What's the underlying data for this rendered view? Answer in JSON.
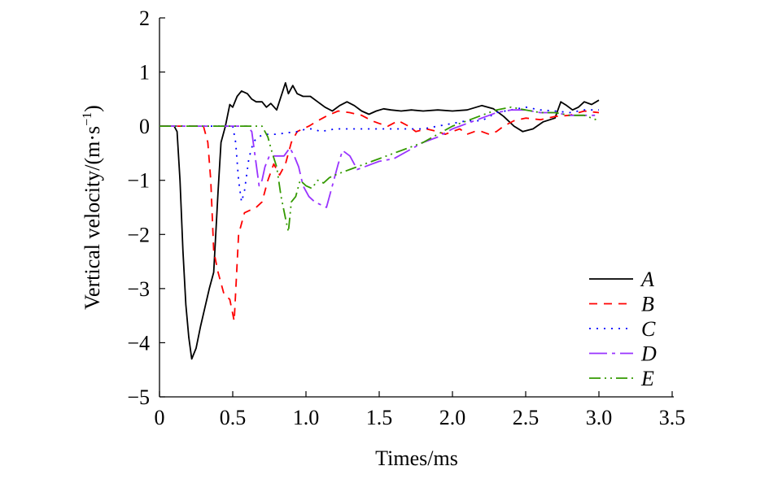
{
  "chart_data": {
    "type": "line",
    "title": "",
    "xlabel": "Times/ms",
    "ylabel_main": "Vertical velocity/(m·s",
    "ylabel_exp": "−1",
    "ylabel_close": ")",
    "xlim": [
      0,
      3.5
    ],
    "ylim": [
      -5,
      2
    ],
    "x_ticks": [
      0,
      0.5,
      1.0,
      1.5,
      2.0,
      2.5,
      3.0,
      3.5
    ],
    "x_tick_labels": [
      "0",
      "0.5",
      "1.0",
      "1.5",
      "2.0",
      "2.5",
      "3.0",
      "3.5"
    ],
    "y_ticks": [
      2,
      1,
      0,
      -1,
      -2,
      -3,
      -4,
      -5
    ],
    "y_tick_labels": [
      "2",
      "1",
      "0",
      "−1",
      "−2",
      "−3",
      "−4",
      "−5"
    ],
    "grid": false,
    "legend_position": "bottom-right",
    "series": [
      {
        "name": "A",
        "color": "#000000",
        "dash": "solid",
        "points": [
          [
            0,
            0
          ],
          [
            0.1,
            0
          ],
          [
            0.12,
            -0.1
          ],
          [
            0.14,
            -1.0
          ],
          [
            0.16,
            -2.3
          ],
          [
            0.18,
            -3.3
          ],
          [
            0.2,
            -3.9
          ],
          [
            0.22,
            -4.3
          ],
          [
            0.25,
            -4.1
          ],
          [
            0.28,
            -3.7
          ],
          [
            0.31,
            -3.35
          ],
          [
            0.34,
            -3.0
          ],
          [
            0.37,
            -2.7
          ],
          [
            0.4,
            -1.2
          ],
          [
            0.42,
            -0.3
          ],
          [
            0.45,
            0.0
          ],
          [
            0.48,
            0.4
          ],
          [
            0.5,
            0.35
          ],
          [
            0.53,
            0.55
          ],
          [
            0.56,
            0.65
          ],
          [
            0.6,
            0.6
          ],
          [
            0.63,
            0.5
          ],
          [
            0.66,
            0.45
          ],
          [
            0.7,
            0.45
          ],
          [
            0.73,
            0.35
          ],
          [
            0.76,
            0.42
          ],
          [
            0.8,
            0.3
          ],
          [
            0.83,
            0.55
          ],
          [
            0.86,
            0.8
          ],
          [
            0.88,
            0.6
          ],
          [
            0.91,
            0.75
          ],
          [
            0.94,
            0.6
          ],
          [
            0.98,
            0.55
          ],
          [
            1.03,
            0.55
          ],
          [
            1.08,
            0.45
          ],
          [
            1.13,
            0.35
          ],
          [
            1.18,
            0.28
          ],
          [
            1.23,
            0.38
          ],
          [
            1.28,
            0.45
          ],
          [
            1.33,
            0.38
          ],
          [
            1.38,
            0.28
          ],
          [
            1.43,
            0.22
          ],
          [
            1.48,
            0.28
          ],
          [
            1.53,
            0.32
          ],
          [
            1.58,
            0.3
          ],
          [
            1.65,
            0.28
          ],
          [
            1.72,
            0.3
          ],
          [
            1.8,
            0.28
          ],
          [
            1.9,
            0.3
          ],
          [
            2.0,
            0.28
          ],
          [
            2.1,
            0.3
          ],
          [
            2.2,
            0.38
          ],
          [
            2.28,
            0.32
          ],
          [
            2.35,
            0.18
          ],
          [
            2.42,
            0.0
          ],
          [
            2.48,
            -0.1
          ],
          [
            2.55,
            -0.05
          ],
          [
            2.62,
            0.08
          ],
          [
            2.7,
            0.15
          ],
          [
            2.74,
            0.45
          ],
          [
            2.78,
            0.38
          ],
          [
            2.82,
            0.3
          ],
          [
            2.86,
            0.35
          ],
          [
            2.9,
            0.45
          ],
          [
            2.95,
            0.4
          ],
          [
            3.0,
            0.48
          ]
        ]
      },
      {
        "name": "B",
        "color": "#ff0000",
        "dash": "10,8",
        "points": [
          [
            0,
            0
          ],
          [
            0.3,
            0
          ],
          [
            0.33,
            -0.3
          ],
          [
            0.35,
            -1.0
          ],
          [
            0.37,
            -2.3
          ],
          [
            0.4,
            -2.7
          ],
          [
            0.44,
            -3.1
          ],
          [
            0.48,
            -3.2
          ],
          [
            0.51,
            -3.6
          ],
          [
            0.54,
            -2.0
          ],
          [
            0.58,
            -1.6
          ],
          [
            0.62,
            -1.55
          ],
          [
            0.66,
            -1.5
          ],
          [
            0.7,
            -1.4
          ],
          [
            0.74,
            -1.0
          ],
          [
            0.78,
            -0.7
          ],
          [
            0.82,
            -0.9
          ],
          [
            0.86,
            -0.7
          ],
          [
            0.9,
            -0.3
          ],
          [
            0.94,
            -0.1
          ],
          [
            0.98,
            -0.05
          ],
          [
            1.02,
            0.0
          ],
          [
            1.08,
            0.1
          ],
          [
            1.15,
            0.2
          ],
          [
            1.22,
            0.28
          ],
          [
            1.3,
            0.25
          ],
          [
            1.38,
            0.2
          ],
          [
            1.45,
            0.1
          ],
          [
            1.5,
            0.05
          ],
          [
            1.56,
            0.0
          ],
          [
            1.63,
            0.1
          ],
          [
            1.7,
            0.0
          ],
          [
            1.75,
            -0.1
          ],
          [
            1.82,
            -0.05
          ],
          [
            1.9,
            -0.1
          ],
          [
            1.95,
            -0.15
          ],
          [
            2.0,
            -0.1
          ],
          [
            2.05,
            -0.05
          ],
          [
            2.1,
            -0.15
          ],
          [
            2.15,
            -0.1
          ],
          [
            2.2,
            -0.1
          ],
          [
            2.25,
            -0.15
          ],
          [
            2.3,
            -0.1
          ],
          [
            2.35,
            0.0
          ],
          [
            2.42,
            0.1
          ],
          [
            2.5,
            0.15
          ],
          [
            2.6,
            0.12
          ],
          [
            2.7,
            0.18
          ],
          [
            2.8,
            0.2
          ],
          [
            2.9,
            0.28
          ],
          [
            3.0,
            0.25
          ]
        ]
      },
      {
        "name": "C",
        "color": "#0000ff",
        "dash": "2,7",
        "points": [
          [
            0,
            0
          ],
          [
            0.5,
            0
          ],
          [
            0.52,
            -0.3
          ],
          [
            0.54,
            -1.0
          ],
          [
            0.56,
            -1.4
          ],
          [
            0.58,
            -1.2
          ],
          [
            0.61,
            -0.6
          ],
          [
            0.64,
            -0.3
          ],
          [
            0.67,
            -0.2
          ],
          [
            0.72,
            -0.15
          ],
          [
            0.8,
            -0.15
          ],
          [
            0.88,
            -0.12
          ],
          [
            0.95,
            -0.1
          ],
          [
            1.0,
            -0.05
          ],
          [
            1.05,
            -0.05
          ],
          [
            1.1,
            -0.1
          ],
          [
            1.2,
            -0.05
          ],
          [
            1.3,
            -0.05
          ],
          [
            1.4,
            -0.05
          ],
          [
            1.5,
            -0.05
          ],
          [
            1.6,
            -0.05
          ],
          [
            1.7,
            -0.05
          ],
          [
            1.8,
            -0.05
          ],
          [
            1.9,
            0.0
          ],
          [
            2.0,
            0.05
          ],
          [
            2.1,
            0.1
          ],
          [
            2.2,
            0.1
          ],
          [
            2.3,
            0.25
          ],
          [
            2.4,
            0.3
          ],
          [
            2.5,
            0.35
          ],
          [
            2.6,
            0.3
          ],
          [
            2.7,
            0.28
          ],
          [
            2.8,
            0.25
          ],
          [
            2.9,
            0.3
          ],
          [
            3.0,
            0.3
          ]
        ]
      },
      {
        "name": "D",
        "color": "#9933ff",
        "dash": "22,6,4,6",
        "points": [
          [
            0,
            0
          ],
          [
            0.6,
            0
          ],
          [
            0.63,
            -0.1
          ],
          [
            0.65,
            -0.5
          ],
          [
            0.68,
            -1.1
          ],
          [
            0.7,
            -1.0
          ],
          [
            0.72,
            -0.75
          ],
          [
            0.75,
            -0.55
          ],
          [
            0.8,
            -0.55
          ],
          [
            0.85,
            -0.55
          ],
          [
            0.89,
            -0.4
          ],
          [
            0.92,
            -0.55
          ],
          [
            0.95,
            -0.75
          ],
          [
            0.98,
            -1.1
          ],
          [
            1.02,
            -1.3
          ],
          [
            1.06,
            -1.4
          ],
          [
            1.1,
            -1.45
          ],
          [
            1.14,
            -1.5
          ],
          [
            1.18,
            -1.1
          ],
          [
            1.22,
            -0.7
          ],
          [
            1.25,
            -0.45
          ],
          [
            1.3,
            -0.55
          ],
          [
            1.35,
            -0.8
          ],
          [
            1.4,
            -0.75
          ],
          [
            1.45,
            -0.7
          ],
          [
            1.5,
            -0.65
          ],
          [
            1.6,
            -0.6
          ],
          [
            1.7,
            -0.45
          ],
          [
            1.8,
            -0.3
          ],
          [
            1.9,
            -0.2
          ],
          [
            2.0,
            -0.05
          ],
          [
            2.1,
            0.05
          ],
          [
            2.2,
            0.15
          ],
          [
            2.3,
            0.25
          ],
          [
            2.4,
            0.3
          ],
          [
            2.5,
            0.3
          ],
          [
            2.6,
            0.25
          ],
          [
            2.7,
            0.25
          ],
          [
            2.8,
            0.2
          ],
          [
            2.9,
            0.2
          ],
          [
            3.0,
            0.2
          ]
        ]
      },
      {
        "name": "E",
        "color": "#339900",
        "dash": "14,5,2,5,2,5",
        "points": [
          [
            0,
            0
          ],
          [
            0.7,
            0
          ],
          [
            0.74,
            -0.2
          ],
          [
            0.77,
            -0.5
          ],
          [
            0.8,
            -0.75
          ],
          [
            0.83,
            -1.3
          ],
          [
            0.86,
            -1.7
          ],
          [
            0.88,
            -1.95
          ],
          [
            0.9,
            -1.4
          ],
          [
            0.93,
            -1.3
          ],
          [
            0.96,
            -1.0
          ],
          [
            1.0,
            -1.1
          ],
          [
            1.04,
            -1.15
          ],
          [
            1.08,
            -1.0
          ],
          [
            1.12,
            -1.05
          ],
          [
            1.16,
            -0.95
          ],
          [
            1.2,
            -0.9
          ],
          [
            1.25,
            -0.85
          ],
          [
            1.3,
            -0.8
          ],
          [
            1.35,
            -0.75
          ],
          [
            1.4,
            -0.7
          ],
          [
            1.5,
            -0.6
          ],
          [
            1.6,
            -0.5
          ],
          [
            1.7,
            -0.4
          ],
          [
            1.8,
            -0.3
          ],
          [
            1.9,
            -0.15
          ],
          [
            2.0,
            0.0
          ],
          [
            2.1,
            0.1
          ],
          [
            2.2,
            0.2
          ],
          [
            2.3,
            0.3
          ],
          [
            2.4,
            0.35
          ],
          [
            2.5,
            0.3
          ],
          [
            2.6,
            0.25
          ],
          [
            2.7,
            0.25
          ],
          [
            2.8,
            0.2
          ],
          [
            2.9,
            0.2
          ],
          [
            3.0,
            0.1
          ]
        ]
      }
    ]
  }
}
